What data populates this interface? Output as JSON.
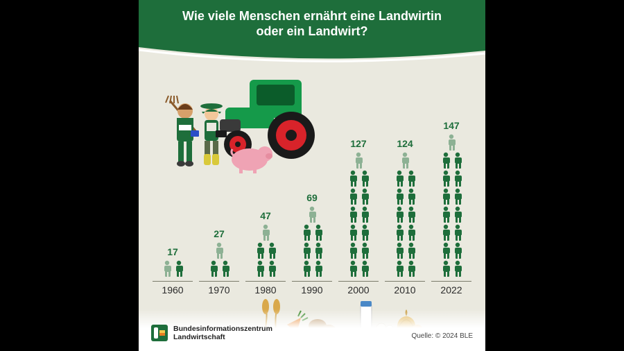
{
  "header": {
    "title_l1": "Wie viele Menschen ernährt eine Landwirtin",
    "title_l2": "oder ein Landwirt?"
  },
  "logo": {
    "line1": "Bundesinformationszentrum",
    "line2": "Landwirtschaft"
  },
  "source": "Quelle: © 2024 BLE",
  "chart": {
    "type": "pictogram-bar",
    "icon_unit": 10,
    "icons_per_row": 2,
    "background_color": "#eae9df",
    "icon_color": "#1e6e3b",
    "icon_partial_opacity": 0.45,
    "value_color": "#1e6e3b",
    "value_fontsize": 14,
    "year_fontsize": 14,
    "year_color": "#2a2a2a",
    "baseline_color": "#7a7a6a",
    "data": [
      {
        "year": "1960",
        "value": 17
      },
      {
        "year": "1970",
        "value": 27
      },
      {
        "year": "1980",
        "value": 47
      },
      {
        "year": "1990",
        "value": 69
      },
      {
        "year": "2000",
        "value": 127
      },
      {
        "year": "2010",
        "value": 124
      },
      {
        "year": "2022",
        "value": 147
      }
    ]
  },
  "colors": {
    "header_bg": "#1e6e3b",
    "header_text": "#ffffff",
    "card_bg": "#eae9df",
    "accent_green": "#1e6e3b",
    "tractor_body": "#159a4a",
    "tractor_wheel_rim": "#d8232a",
    "tractor_tire": "#1a1a1a",
    "pig": "#efa3b4",
    "wheat": "#d9a84a",
    "carrot": "#e67e22",
    "potato": "#b89160",
    "milk_bottle": "#ffffff",
    "milk_cap": "#4a88c7",
    "onion": "#e3b95e"
  }
}
